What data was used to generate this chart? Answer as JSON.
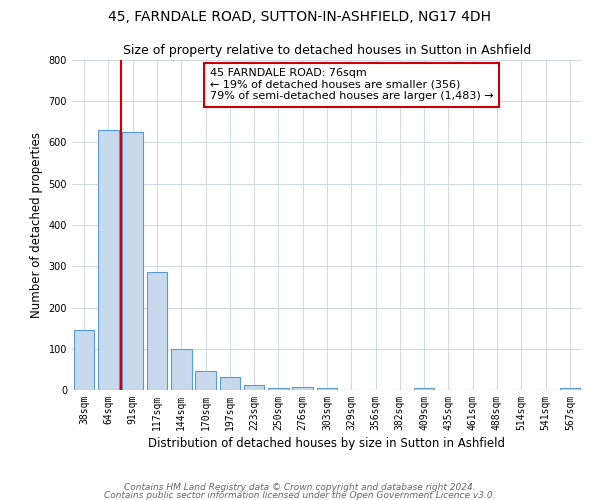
{
  "title1": "45, FARNDALE ROAD, SUTTON-IN-ASHFIELD, NG17 4DH",
  "title2": "Size of property relative to detached houses in Sutton in Ashfield",
  "xlabel": "Distribution of detached houses by size in Sutton in Ashfield",
  "ylabel": "Number of detached properties",
  "categories": [
    "38sqm",
    "64sqm",
    "91sqm",
    "117sqm",
    "144sqm",
    "170sqm",
    "197sqm",
    "223sqm",
    "250sqm",
    "276sqm",
    "303sqm",
    "329sqm",
    "356sqm",
    "382sqm",
    "409sqm",
    "435sqm",
    "461sqm",
    "488sqm",
    "514sqm",
    "541sqm",
    "567sqm"
  ],
  "values": [
    145,
    630,
    625,
    285,
    100,
    47,
    32,
    12,
    5,
    8,
    5,
    0,
    0,
    0,
    5,
    0,
    0,
    0,
    0,
    0,
    5
  ],
  "bar_color": "#c8d9ed",
  "bar_edge_color": "#5b9bd5",
  "vline_x_pos": 1.5,
  "vline_color": "#cc0000",
  "annotation_text": "45 FARNDALE ROAD: 76sqm\n← 19% of detached houses are smaller (356)\n79% of semi-detached houses are larger (1,483) →",
  "annotation_box_color": "#ffffff",
  "annotation_box_edge_color": "#cc0000",
  "ylim": [
    0,
    800
  ],
  "yticks": [
    0,
    100,
    200,
    300,
    400,
    500,
    600,
    700,
    800
  ],
  "background_color": "#ffffff",
  "grid_color": "#d0d8e8",
  "footer_line1": "Contains HM Land Registry data © Crown copyright and database right 2024.",
  "footer_line2": "Contains public sector information licensed under the Open Government Licence v3.0.",
  "title_fontsize": 10,
  "subtitle_fontsize": 9,
  "axis_label_fontsize": 8.5,
  "tick_fontsize": 7,
  "annotation_fontsize": 8,
  "footer_fontsize": 6.5
}
